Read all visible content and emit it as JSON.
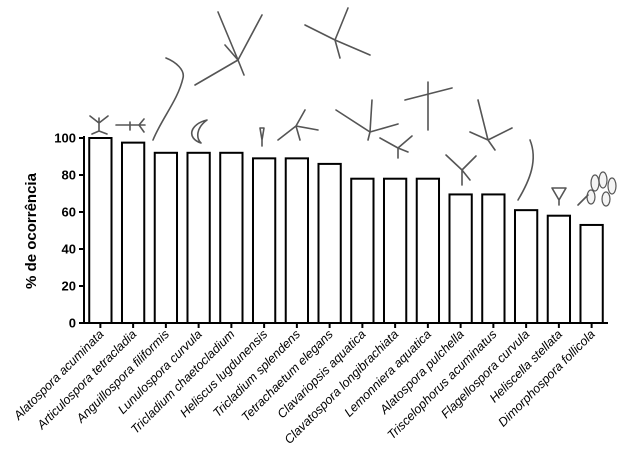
{
  "chart_data": {
    "type": "bar",
    "categories": [
      "Alatospora acuminata",
      "Articulospora tetracladia",
      "Anguillospora filiformis",
      "Lunulospora curvula",
      "Tricladium chaetocladium",
      "Heliscus lugdunensis",
      "Tricladium splendens",
      "Tetrachaetum elegans",
      "Clavariopsis aquatica",
      "Clavatospora longibrachiata",
      "Lemonniera aquatica",
      "Alatospora pulchella",
      "Triscelophorus acuminatus",
      "Flagellospora curvula",
      "Heliscella stellata",
      "Dimorphospora follicola"
    ],
    "values": [
      100,
      97.5,
      92,
      92,
      92,
      89,
      89,
      86,
      78,
      78,
      78,
      69.5,
      69.5,
      61,
      58,
      53
    ],
    "ylabel": "% de ocorrência",
    "xlabel": "",
    "ylim": [
      0,
      100
    ],
    "yticks": [
      "0",
      "20",
      "40",
      "60",
      "80",
      "100"
    ],
    "grid": false,
    "legend": "none"
  }
}
